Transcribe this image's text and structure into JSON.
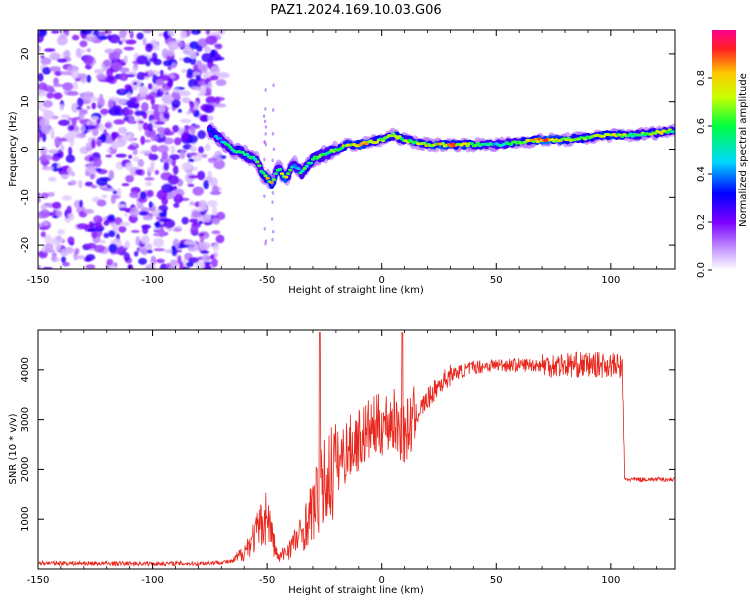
{
  "title": "PAZ1.2024.169.10.03.G06",
  "chart_data": [
    {
      "type": "heatmap",
      "xlabel": "Height of straight line (km)",
      "ylabel": "Frequency (Hz)",
      "xlim": [
        -150,
        128
      ],
      "ylim": [
        -25,
        25
      ],
      "x_ticks": [
        -150,
        -100,
        -50,
        0,
        50,
        100
      ],
      "y_ticks": [
        -20,
        -10,
        0,
        10,
        20
      ],
      "colorbar": {
        "label": "Normalized spectral amplitude",
        "range": [
          0,
          1
        ],
        "ticks": [
          0.0,
          0.2,
          0.4,
          0.6,
          0.8
        ],
        "colormap": "rainbow"
      },
      "noise_region_x": [
        -150,
        -70
      ],
      "frequency_track": {
        "x": [
          -75,
          -70,
          -65,
          -60,
          -55,
          -52,
          -48,
          -45,
          -42,
          -38,
          -35,
          -30,
          -25,
          -20,
          -15,
          -10,
          0,
          5,
          10,
          20,
          30,
          40,
          50,
          60,
          70,
          80,
          90,
          100,
          110,
          120,
          128
        ],
        "y": [
          4,
          2,
          0,
          -1,
          -2,
          -5,
          -7,
          -4,
          -6,
          -3,
          -5,
          -2,
          -1,
          0,
          1,
          1,
          2,
          3,
          2,
          1,
          1,
          1,
          1,
          1.5,
          2,
          2,
          2.5,
          3,
          3,
          3.5,
          4
        ],
        "amplitude": [
          0.4,
          0.5,
          0.6,
          0.7,
          0.6,
          0.7,
          0.9,
          0.6,
          0.9,
          0.5,
          0.6,
          0.7,
          0.6,
          0.7,
          0.8,
          0.9,
          0.7,
          0.8,
          0.7,
          0.8,
          0.9,
          0.7,
          0.5,
          0.7,
          0.95,
          0.8,
          0.7,
          0.9,
          0.6,
          0.8,
          0.6
        ]
      }
    },
    {
      "type": "line",
      "xlabel": "Height of straight line (km)",
      "ylabel": "SNR (10 * v/v)",
      "xlim": [
        -150,
        128
      ],
      "ylim": [
        0,
        4800
      ],
      "x_ticks": [
        -150,
        -100,
        -50,
        0,
        50,
        100
      ],
      "y_ticks": [
        1000,
        2000,
        3000,
        4000
      ],
      "line_color": "#e8281e",
      "series": [
        {
          "x": [
            -150,
            -120,
            -100,
            -80,
            -65,
            -60,
            -55,
            -50,
            -47,
            -45,
            -42,
            -40,
            -35,
            -30,
            -25,
            -20,
            -15,
            -10,
            -5,
            0,
            5,
            10,
            15,
            20,
            25,
            30,
            40,
            50,
            60,
            70,
            80,
            90,
            100,
            105,
            106,
            107,
            110,
            120,
            128
          ],
          "y": [
            120,
            110,
            110,
            110,
            150,
            350,
            700,
            1100,
            500,
            200,
            350,
            450,
            700,
            1200,
            1700,
            2100,
            2400,
            2600,
            2800,
            2900,
            3000,
            2700,
            3100,
            3400,
            3700,
            3900,
            4050,
            4100,
            4100,
            4100,
            4100,
            4100,
            4100,
            4050,
            1800,
            1800,
            1800,
            1800,
            1800
          ]
        }
      ]
    }
  ]
}
